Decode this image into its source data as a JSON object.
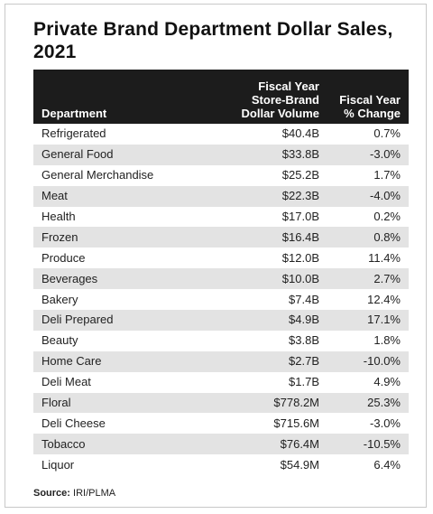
{
  "title": "Private Brand Department Dollar Sales, 2021",
  "table": {
    "headers": {
      "department": "Department",
      "volume": "Fiscal Year\nStore-Brand\nDollar Volume",
      "change": "Fiscal Year\n% Change"
    },
    "rows": [
      {
        "department": "Refrigerated",
        "volume": "$40.4B",
        "change": "0.7%"
      },
      {
        "department": "General Food",
        "volume": "$33.8B",
        "change": "-3.0%"
      },
      {
        "department": "General Merchandise",
        "volume": "$25.2B",
        "change": "1.7%"
      },
      {
        "department": "Meat",
        "volume": "$22.3B",
        "change": "-4.0%"
      },
      {
        "department": "Health",
        "volume": "$17.0B",
        "change": "0.2%"
      },
      {
        "department": "Frozen",
        "volume": "$16.4B",
        "change": "0.8%"
      },
      {
        "department": "Produce",
        "volume": "$12.0B",
        "change": "11.4%"
      },
      {
        "department": "Beverages",
        "volume": "$10.0B",
        "change": "2.7%"
      },
      {
        "department": "Bakery",
        "volume": "$7.4B",
        "change": "12.4%"
      },
      {
        "department": "Deli Prepared",
        "volume": "$4.9B",
        "change": "17.1%"
      },
      {
        "department": "Beauty",
        "volume": "$3.8B",
        "change": "1.8%"
      },
      {
        "department": "Home Care",
        "volume": "$2.7B",
        "change": "-10.0%"
      },
      {
        "department": "Deli Meat",
        "volume": "$1.7B",
        "change": "4.9%"
      },
      {
        "department": "Floral",
        "volume": "$778.2M",
        "change": "25.3%"
      },
      {
        "department": "Deli Cheese",
        "volume": "$715.6M",
        "change": "-3.0%"
      },
      {
        "department": "Tobacco",
        "volume": "$76.4M",
        "change": "-10.5%"
      },
      {
        "department": "Liquor",
        "volume": "$54.9M",
        "change": "6.4%"
      }
    ]
  },
  "source": {
    "label": "Source:",
    "text": "IRI/PLMA"
  },
  "colors": {
    "header_background": "#1c1c1c",
    "header_text": "#ffffff",
    "stripe": "#e3e3e3"
  }
}
